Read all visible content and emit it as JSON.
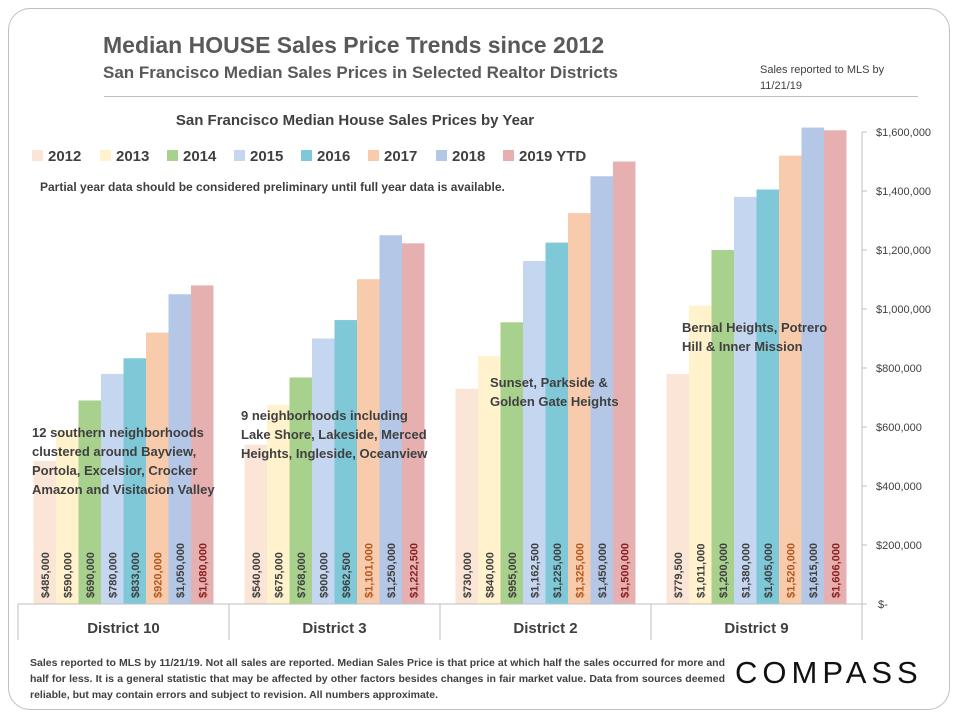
{
  "header": {
    "title": "Median HOUSE Sales Price Trends since 2012",
    "subtitle": "San Francisco Median Sales Prices in Selected Realtor Districts",
    "sales_note": "Sales reported to MLS by 11/21/19"
  },
  "footer": {
    "note": "Sales reported to MLS by 11/21/19. Not all sales are reported. Median Sales Price is that price at which half the sales occurred for more and half for less. It is a general statistic that may be affected by other factors besides changes in fair market value. Data from sources deemed reliable, but may contain errors and subject to revision. All numbers approximate.",
    "logo": "COMPASS"
  },
  "colors": {
    "2012": "#fbe5d6",
    "2013": "#fff2cc",
    "2014": "#a9d18e",
    "2015": "#c5d6f0",
    "2016": "#7ec8d8",
    "2017": "#f8cbad",
    "2018": "#b4c7e7",
    "2019 YTD": "#e6b0b0"
  },
  "chart_data": {
    "type": "bar",
    "title": "San Francisco Median House Sales Prices by Year",
    "note": "Partial year data should be considered preliminary until full year data is available.",
    "categories": [
      "District 10",
      "District 3",
      "District 2",
      "District 9"
    ],
    "series": [
      {
        "name": "2012",
        "values": [
          485000,
          540000,
          730000,
          779500
        ],
        "labels": [
          "$485,000",
          "$540,000",
          "$730,000",
          "$779,500"
        ]
      },
      {
        "name": "2013",
        "values": [
          590000,
          675000,
          840000,
          1011000
        ],
        "labels": [
          "$590,000",
          "$675,000",
          "$840,000",
          "$1,011,000"
        ]
      },
      {
        "name": "2014",
        "values": [
          690000,
          768000,
          955000,
          1200000
        ],
        "labels": [
          "$690,000",
          "$768,000",
          "$955,000",
          "$1,200,000"
        ]
      },
      {
        "name": "2015",
        "values": [
          780000,
          900000,
          1162500,
          1380000
        ],
        "labels": [
          "$780,000",
          "$900,000",
          "$1,162,500",
          "$1,380,000"
        ]
      },
      {
        "name": "2016",
        "values": [
          833000,
          962500,
          1225000,
          1405000
        ],
        "labels": [
          "$833,000",
          "$962,500",
          "$1,225,000",
          "$1,405,000"
        ]
      },
      {
        "name": "2017",
        "values": [
          920000,
          1101000,
          1325000,
          1520000
        ],
        "labels": [
          "$920,000",
          "$1,101,000",
          "$1,325,000",
          "$1,520,000"
        ]
      },
      {
        "name": "2018",
        "values": [
          1050000,
          1250000,
          1450000,
          1615000
        ],
        "labels": [
          "$1,050,000",
          "$1,250,000",
          "$1,450,000",
          "$1,615,000"
        ]
      },
      {
        "name": "2019 YTD",
        "values": [
          1080000,
          1222500,
          1500000,
          1606000
        ],
        "labels": [
          "$1,080,000",
          "$1,222,500",
          "$1,500,000",
          "$1,606,000"
        ]
      }
    ],
    "ylim": [
      0,
      1600000
    ],
    "y_ticks": [
      0,
      200000,
      400000,
      600000,
      800000,
      1000000,
      1200000,
      1400000,
      1600000
    ],
    "y_tick_labels": [
      "$-",
      "$200,000",
      "$400,000",
      "$600,000",
      "$800,000",
      "$1,000,000",
      "$1,200,000",
      "$1,400,000",
      "$1,600,000"
    ],
    "y_axis_side": "right",
    "legend_position": "top-left",
    "grid": false,
    "annotations": [
      {
        "district": "District 10",
        "lines": [
          "12 southern neighborhoods",
          "clustered around Bayview,",
          "Portola, Excelsior, Crocker",
          "Amazon and Visitacion Valley"
        ]
      },
      {
        "district": "District 3",
        "lines": [
          "9 neighborhoods including",
          "Lake Shore, Lakeside, Merced",
          "Heights, Ingleside, Oceanview"
        ]
      },
      {
        "district": "District 2",
        "lines": [
          "Sunset, Parkside &",
          "Golden Gate Heights"
        ]
      },
      {
        "district": "District 9",
        "lines": [
          "Bernal Heights, Potrero",
          "Hill & Inner Mission"
        ]
      }
    ]
  }
}
